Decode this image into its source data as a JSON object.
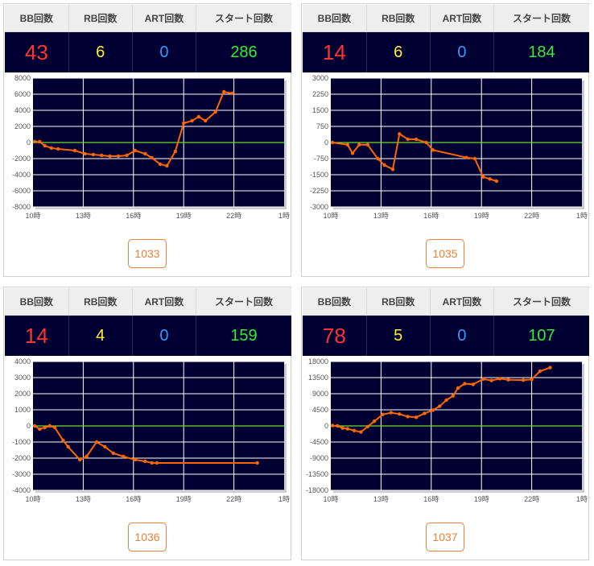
{
  "headers": {
    "bb": "BB回数",
    "rb": "RB回数",
    "art": "ART回数",
    "start": "スタート回数"
  },
  "colors": {
    "bb": "#ff3333",
    "rb": "#ffee33",
    "art": "#3399ff",
    "start": "#33ee33",
    "plot_bg": "#000033",
    "line": "#ff6600",
    "zero_line": "#66dd33",
    "button": "#e8823a"
  },
  "machines": [
    {
      "id": "1033",
      "bb": "43",
      "rb": "6",
      "art": "0",
      "start": "286",
      "chart_data": {
        "type": "line",
        "x_ticks": [
          "10時",
          "13時",
          "16時",
          "19時",
          "22時",
          "1時"
        ],
        "xlim": [
          10,
          25
        ],
        "ylim": [
          -8000,
          8000
        ],
        "y_ticks": [
          "8000",
          "6000",
          "4000",
          "2000",
          "0",
          "-2000",
          "-4000",
          "-6000",
          "-8000"
        ],
        "grid": true,
        "series": [
          {
            "x": [
              10.1,
              10.4,
              10.7,
              11.1,
              11.5,
              12.5,
              13.1,
              13.6,
              14.1,
              14.6,
              15.1,
              15.6,
              16.1,
              16.7,
              17.1,
              17.6,
              18.0,
              18.5,
              19.0,
              19.5,
              19.9,
              20.3,
              20.9,
              21.4,
              21.9
            ],
            "y": [
              100,
              100,
              -400,
              -700,
              -800,
              -1000,
              -1400,
              -1500,
              -1600,
              -1700,
              -1700,
              -1600,
              -1000,
              -1400,
              -1900,
              -2700,
              -2900,
              -1100,
              2400,
              2700,
              3200,
              2700,
              3800,
              6300,
              6100
            ]
          }
        ]
      }
    },
    {
      "id": "1035",
      "bb": "14",
      "rb": "6",
      "art": "0",
      "start": "184",
      "chart_data": {
        "type": "line",
        "x_ticks": [
          "10時",
          "13時",
          "16時",
          "19時",
          "22時",
          "1時"
        ],
        "xlim": [
          10,
          25
        ],
        "ylim": [
          -3000,
          3000
        ],
        "y_ticks": [
          "3000",
          "2250",
          "1500",
          "750",
          "0",
          "-750",
          "-1500",
          "-2250",
          "-3000"
        ],
        "grid": true,
        "series": [
          {
            "x": [
              10.1,
              11.0,
              11.3,
              11.7,
              12.2,
              12.8,
              13.2,
              13.7,
              14.1,
              14.6,
              15.1,
              15.7,
              16.1,
              18.1,
              18.6,
              19.1,
              19.5,
              19.9
            ],
            "y": [
              0,
              -100,
              -500,
              -100,
              -100,
              -750,
              -1050,
              -1250,
              400,
              150,
              150,
              0,
              -350,
              -700,
              -750,
              -1600,
              -1700,
              -1800
            ]
          }
        ]
      }
    },
    {
      "id": "1036",
      "bb": "14",
      "rb": "4",
      "art": "0",
      "start": "159",
      "chart_data": {
        "type": "line",
        "x_ticks": [
          "10時",
          "13時",
          "16時",
          "19時",
          "22時",
          "1時"
        ],
        "xlim": [
          10,
          25
        ],
        "ylim": [
          -4000,
          4000
        ],
        "y_ticks": [
          "4000",
          "3000",
          "2000",
          "1000",
          "0",
          "-1000",
          "-2000",
          "-3000",
          "-4000"
        ],
        "grid": true,
        "series": [
          {
            "x": [
              10.1,
              10.4,
              10.7,
              11.0,
              11.3,
              11.8,
              12.1,
              12.8,
              13.2,
              13.8,
              14.3,
              14.8,
              15.4,
              16.1,
              16.7,
              17.1,
              17.4,
              23.4
            ],
            "y": [
              0,
              -200,
              -100,
              0,
              -100,
              -900,
              -1300,
              -2100,
              -1900,
              -1000,
              -1300,
              -1700,
              -1900,
              -2100,
              -2200,
              -2300,
              -2300,
              -2300
            ]
          }
        ]
      }
    },
    {
      "id": "1037",
      "bb": "78",
      "rb": "5",
      "art": "0",
      "start": "107",
      "chart_data": {
        "type": "line",
        "x_ticks": [
          "10時",
          "13時",
          "16時",
          "19時",
          "22時",
          "1時"
        ],
        "xlim": [
          10,
          25
        ],
        "ylim": [
          -18000,
          18000
        ],
        "y_ticks": [
          "18000",
          "13500",
          "9000",
          "4500",
          "0",
          "-4500",
          "-9000",
          "-13500",
          "-18000"
        ],
        "grid": true,
        "series": [
          {
            "x": [
              10.1,
              10.4,
              10.7,
              11.0,
              11.4,
              11.8,
              12.2,
              12.6,
              13.1,
              13.6,
              14.1,
              14.6,
              15.1,
              15.6,
              16.1,
              16.5,
              16.9,
              17.3,
              17.6,
              18.0,
              18.5,
              19.1,
              19.6,
              20.1,
              20.6,
              21.5,
              22.0,
              22.5,
              23.1
            ],
            "y": [
              100,
              0,
              -600,
              -800,
              -1300,
              -1700,
              -200,
              1300,
              3200,
              3700,
              3300,
              2600,
              2400,
              3500,
              4400,
              5500,
              7200,
              8400,
              10600,
              11800,
              11600,
              13100,
              12700,
              13200,
              12900,
              12800,
              13000,
              15300,
              16300
            ]
          }
        ]
      }
    }
  ]
}
